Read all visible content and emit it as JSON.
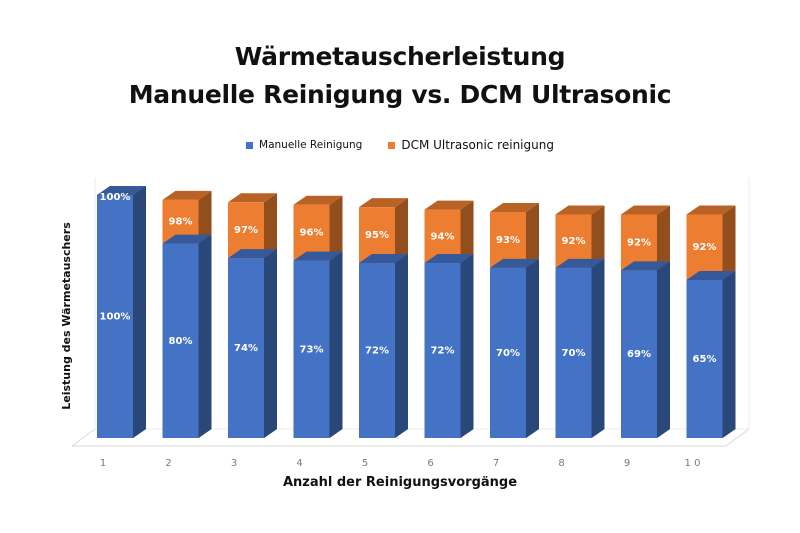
{
  "chart_data": {
    "type": "bar",
    "title": "Wärmetauscherleistung",
    "subtitle": "Manuelle Reinigung vs. DCM Ultrasonic",
    "xlabel": "Anzahl der Reinigungsvorgänge",
    "ylabel": "Leistung des Wärmetauschers",
    "categories": [
      "1",
      "2",
      "3",
      "4",
      "5",
      "6",
      "7",
      "8",
      "9",
      "1 0"
    ],
    "ylim": [
      0,
      100
    ],
    "unit": "%",
    "grid": false,
    "legend_position": "top",
    "series": [
      {
        "name": "Manuelle Reinigung",
        "color": "#4472C4",
        "values": [
          100,
          80,
          74,
          73,
          72,
          72,
          70,
          70,
          69,
          65
        ]
      },
      {
        "name": "DCM Ultrasonic reinigung",
        "color": "#ED7D31",
        "values": [
          100,
          98,
          97,
          96,
          95,
          94,
          93,
          92,
          92,
          92
        ]
      }
    ],
    "data_labels": {
      "Manuelle Reinigung": [
        "100%",
        "80%",
        "74%",
        "73%",
        "72%",
        "72%",
        "70%",
        "70%",
        "69%",
        "65%"
      ],
      "DCM Ultrasonic reinigung": [
        "100%",
        "98%",
        "97%",
        "96%",
        "95%",
        "94%",
        "93%",
        "92%",
        "92%",
        "92%"
      ]
    },
    "style": "3d-overlapping-columns"
  }
}
